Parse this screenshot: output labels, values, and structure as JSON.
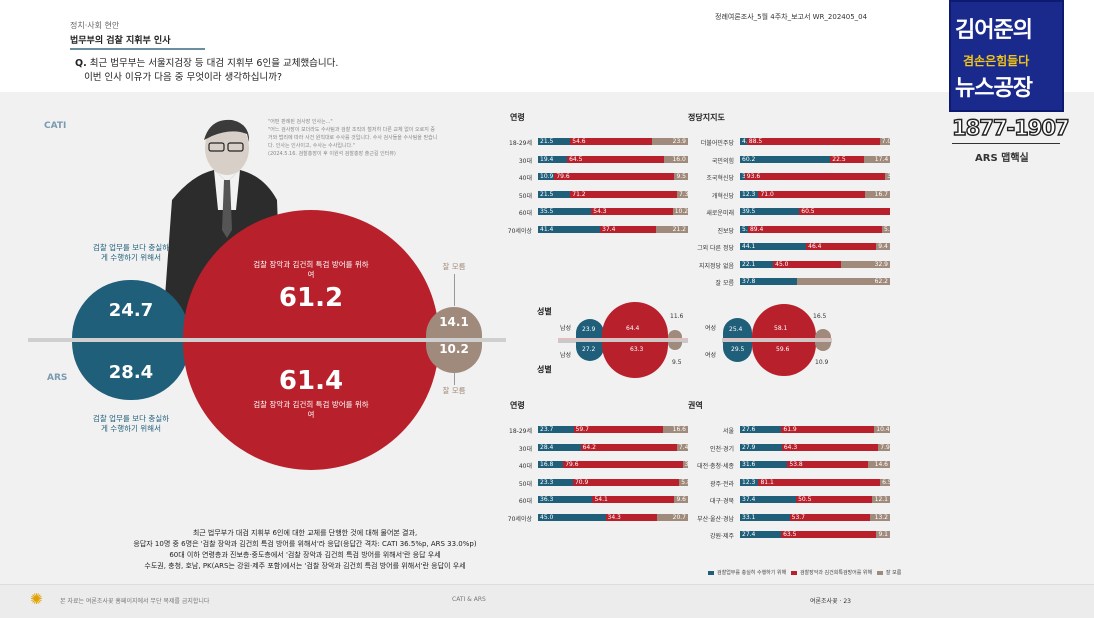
{
  "header": {
    "section": "정치·사회 현안",
    "title": "법무부의 검찰 지휘부 인사",
    "question_prefix": "Q.",
    "question_line1": "최근 법무부는 서울지검장 등 대검 지휘부 6인을 교체했습니다.",
    "question_line2": "이번 인사 이유가 다음 중 무엇이라 생각하십니까?",
    "report_id": "정례여론조사_5월 4주차_보고서   WR_202405_04"
  },
  "logo": {
    "line1": "김어준의",
    "line2": "겸손은힘들다",
    "line3": "뉴스공장"
  },
  "ars_phone": {
    "number": "1877-1907",
    "label": "ARS 맵핵실"
  },
  "labels": {
    "cati": "CATI",
    "ars": "ARS"
  },
  "quote": {
    "title": "\"어떤 판례된 검사장 인사는...\"",
    "body": "\"어느 검사장이 보더라도 수사팀과 검찰 조직의 철저히 다른 교체 없이 오로지 증거와 법리에 따라 사건 원칙대로 수사를 것입니다. 수사 검사들을 수사팀을 믿습니다. 인사는 인사이고, 수사는 수사입니다.\"",
    "source": "(2024.5.16. 검찰총장이 후 이원석 검찰총장 출근길 인터뷰)"
  },
  "colors": {
    "teal": "#1f5f7a",
    "red": "#b8202c",
    "taupe": "#a08a7c",
    "pink": "#d26b73"
  },
  "icons": [
    "flower-icon"
  ],
  "bubbles": {
    "cati": {
      "duty": "24.7",
      "special": "61.2",
      "unknown": "14.1"
    },
    "ars": {
      "duty": "28.4",
      "special": "61.4",
      "unknown": "10.2"
    },
    "duty_label": "검찰 업무를 보다 충실하게 수행하기 위해서",
    "special_label": "검찰 장악과 김건희 특검 방어를 위하여",
    "unknown_label": "잘 모름"
  },
  "body_text": [
    "최근 법무부가 대검 지휘부 6인에 대한 교체를 단행한 것에 대해 물어본 결과,",
    "응답자 10명 중 6명은 '검찰 장악과 김건희 특검 방어를 위해서'라 응답(응답간 격차: CATI 36.5%p, ARS 33.0%p)",
    "60대 이하 연령층과 진보층·중도층에서 '검찰 장악과 김건희 특검 방어를 위해서'란 응답 우세",
    "수도권, 충청, 호남, PK(ARS는 강원·제주 포함)에서는 '검찰 장악과 김건희 특검 방어를 위해서'란 응답이 우세"
  ],
  "footer": {
    "left": "본 자료는 여론조사꽃 홈페이지에서 무단 복제를 금지합니다",
    "center": "CATI & ARS",
    "right": "여론조사꽃 · 23"
  },
  "legend": {
    "duty": "검찰업무를 충실히 수행하기 위해",
    "special": "검찰장악과 김건희특검방어를 위해",
    "unknown": "잘 모름"
  },
  "gender_titles": {
    "cati": "성별",
    "ars": "성별"
  },
  "gender_labels": {
    "male": "남성",
    "female": "여성"
  },
  "gender": {
    "cati_male": {
      "duty": "23.9",
      "special": "64.4",
      "unknown": "11.6"
    },
    "ars_male": {
      "duty": "27.2",
      "special": "63.3",
      "unknown": "9.5"
    },
    "cati_female": {
      "duty": "25.4",
      "special": "58.1",
      "unknown": "16.5"
    },
    "ars_female": {
      "duty": "29.5",
      "special": "59.6",
      "unknown": "10.9"
    }
  },
  "chart_data": [
    {
      "type": "bar",
      "title": "연령 (CATI)",
      "categories": [
        "18-29세",
        "30대",
        "40대",
        "50대",
        "60대",
        "70세이상"
      ],
      "series": [
        {
          "name": "검찰업무 충실",
          "values": [
            21.5,
            19.4,
            10.9,
            21.5,
            35.5,
            41.4
          ]
        },
        {
          "name": "검찰장악·김건희특검 방어",
          "values": [
            54.6,
            64.5,
            79.6,
            71.2,
            54.3,
            37.4
          ]
        },
        {
          "name": "잘 모름",
          "values": [
            23.9,
            16.0,
            9.5,
            7.3,
            10.2,
            21.2
          ]
        }
      ]
    },
    {
      "type": "bar",
      "title": "정당지지도 (CATI)",
      "categories": [
        "더불어민주당",
        "국민의힘",
        "조국혁신당",
        "개혁신당",
        "새로운미래",
        "진보당",
        "그외 다른 정당",
        "지지정당 없음",
        "잘 모름"
      ],
      "series": [
        {
          "name": "검찰업무 충실",
          "values": [
            4.6,
            60.2,
            3.2,
            12.3,
            39.5,
            5.3,
            44.1,
            22.1,
            37.8
          ]
        },
        {
          "name": "검찰장악·김건희특검 방어",
          "values": [
            88.5,
            22.5,
            93.6,
            71.0,
            60.5,
            89.4,
            46.4,
            45.0,
            0.0
          ]
        },
        {
          "name": "잘 모름",
          "values": [
            7.0,
            17.4,
            3.2,
            16.7,
            0.0,
            5.3,
            9.4,
            32.9,
            62.2
          ]
        }
      ]
    },
    {
      "type": "bar",
      "title": "연령 (ARS)",
      "categories": [
        "18-29세",
        "30대",
        "40대",
        "50대",
        "60대",
        "70세이상"
      ],
      "series": [
        {
          "name": "검찰업무 충실",
          "values": [
            23.7,
            28.4,
            16.8,
            23.3,
            36.3,
            45.0
          ]
        },
        {
          "name": "검찰장악·김건희특검 방어",
          "values": [
            59.7,
            64.2,
            79.6,
            70.9,
            54.1,
            34.3
          ]
        },
        {
          "name": "잘 모름",
          "values": [
            16.6,
            7.4,
            3.6,
            5.8,
            9.6,
            20.7
          ]
        }
      ]
    },
    {
      "type": "bar",
      "title": "권역 (ARS)",
      "categories": [
        "서울",
        "인천·경기",
        "대전·충청·세종",
        "광주·전라",
        "대구·경북",
        "부산·울산·경남",
        "강원·제주"
      ],
      "series": [
        {
          "name": "검찰업무 충실",
          "values": [
            27.6,
            27.9,
            31.6,
            12.3,
            37.4,
            33.1,
            27.4
          ]
        },
        {
          "name": "검찰장악·김건희특검 방어",
          "values": [
            61.9,
            64.3,
            53.8,
            81.1,
            50.5,
            53.7,
            63.5
          ]
        },
        {
          "name": "잘 모름",
          "values": [
            10.4,
            7.9,
            14.6,
            6.5,
            12.1,
            13.2,
            9.1
          ]
        }
      ]
    }
  ]
}
